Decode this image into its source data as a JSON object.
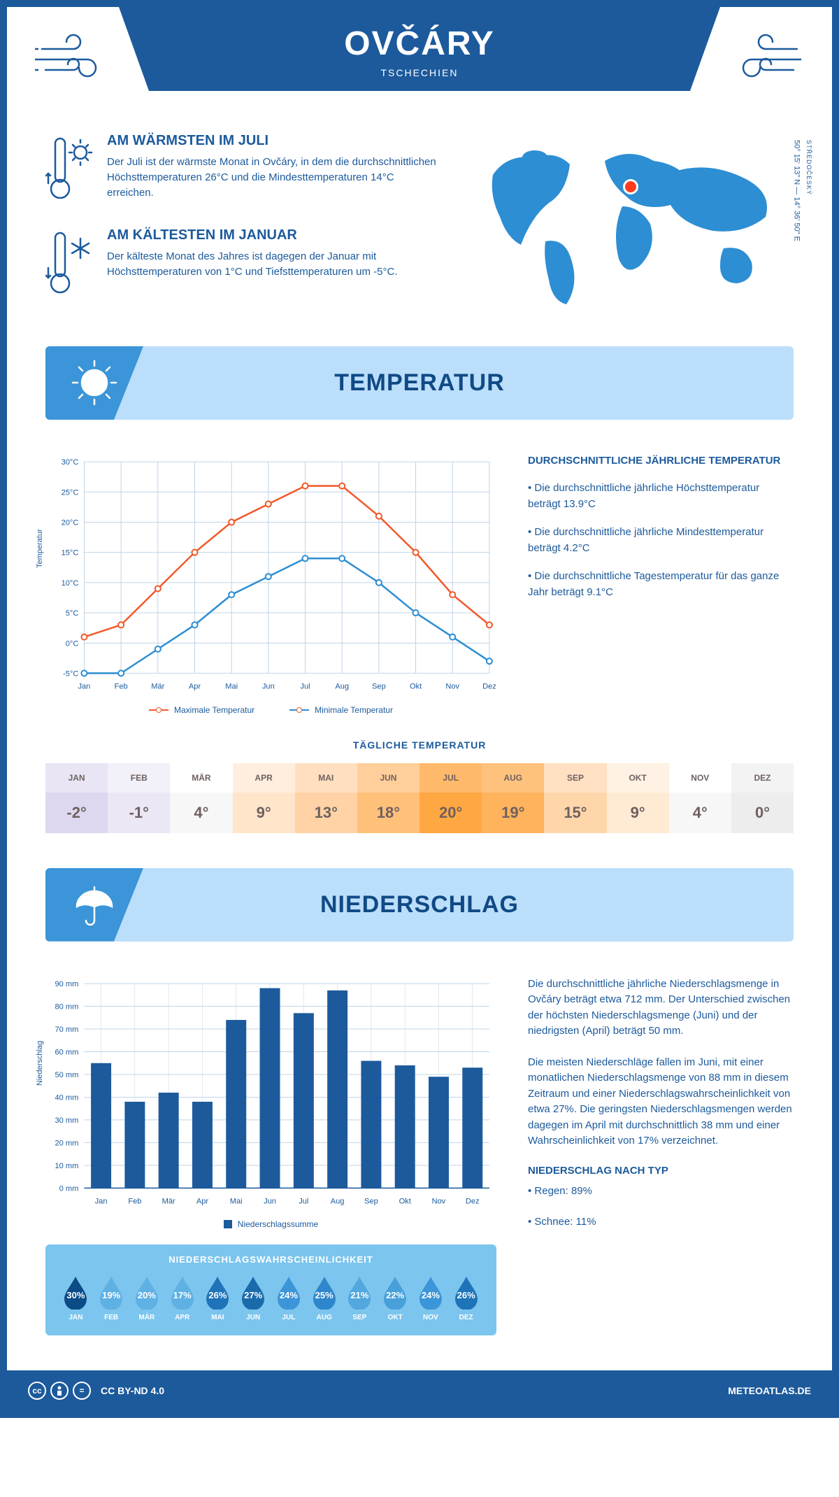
{
  "header": {
    "title": "OVČÁRY",
    "country": "TSCHECHIEN"
  },
  "coords": {
    "region": "STŘEDOČESKÝ",
    "text": "50° 15' 13\" N — 14° 36' 50\" E"
  },
  "facts": {
    "warm": {
      "title": "AM WÄRMSTEN IM JULI",
      "text": "Der Juli ist der wärmste Monat in Ovčáry, in dem die durchschnittlichen Höchsttemperaturen 26°C und die Mindesttemperaturen 14°C erreichen."
    },
    "cold": {
      "title": "AM KÄLTESTEN IM JANUAR",
      "text": "Der kälteste Monat des Jahres ist dagegen der Januar mit Höchsttemperaturen von 1°C und Tiefsttemperaturen um -5°C."
    }
  },
  "sections": {
    "temperature": "TEMPERATUR",
    "precipitation": "NIEDERSCHLAG"
  },
  "temp_chart": {
    "type": "line",
    "y_label": "Temperatur",
    "months": [
      "Jan",
      "Feb",
      "Mär",
      "Apr",
      "Mai",
      "Jun",
      "Jul",
      "Aug",
      "Sep",
      "Okt",
      "Nov",
      "Dez"
    ],
    "ylim": [
      -5,
      30
    ],
    "ytick_step": 5,
    "ytick_suffix": "°C",
    "max_series": [
      1,
      3,
      9,
      15,
      20,
      23,
      26,
      26,
      21,
      15,
      8,
      3
    ],
    "min_series": [
      -5,
      -5,
      -1,
      3,
      8,
      11,
      14,
      14,
      10,
      5,
      1,
      -3
    ],
    "max_color": "#f15a2b",
    "min_color": "#2d8ed3",
    "grid_color": "#bfd4e8",
    "legend": {
      "max": "Maximale Temperatur",
      "min": "Minimale Temperatur"
    }
  },
  "temp_info": {
    "heading": "DURCHSCHNITTLICHE JÄHRLICHE TEMPERATUR",
    "b1": "• Die durchschnittliche jährliche Höchsttemperatur beträgt 13.9°C",
    "b2": "• Die durchschnittliche jährliche Mindesttemperatur beträgt 4.2°C",
    "b3": "• Die durchschnittliche Tagestemperatur für das ganze Jahr beträgt 9.1°C"
  },
  "daily": {
    "title": "TÄGLICHE TEMPERATUR",
    "months": [
      "JAN",
      "FEB",
      "MÄR",
      "APR",
      "MAI",
      "JUN",
      "JUL",
      "AUG",
      "SEP",
      "OKT",
      "NOV",
      "DEZ"
    ],
    "values": [
      "-2°",
      "-1°",
      "4°",
      "9°",
      "13°",
      "18°",
      "20°",
      "19°",
      "15°",
      "9°",
      "4°",
      "0°"
    ],
    "head_colors": [
      "#e9e5f5",
      "#f2f0f9",
      "#ffffff",
      "#ffeedd",
      "#ffdfbf",
      "#ffcf9b",
      "#ffb96a",
      "#ffc27d",
      "#ffe0c2",
      "#fff2e4",
      "#ffffff",
      "#f3f3f3"
    ],
    "val_colors": [
      "#ddd7ef",
      "#ebe7f5",
      "#f7f7f7",
      "#ffe6cb",
      "#ffd3a5",
      "#ffc07a",
      "#ffa742",
      "#ffb35c",
      "#ffd5aa",
      "#ffead3",
      "#f7f7f7",
      "#ededed"
    ],
    "text_color": "#6f6060"
  },
  "precip_chart": {
    "type": "bar",
    "y_label": "Niederschlag",
    "months": [
      "Jan",
      "Feb",
      "Mär",
      "Apr",
      "Mai",
      "Jun",
      "Jul",
      "Aug",
      "Sep",
      "Okt",
      "Nov",
      "Dez"
    ],
    "values": [
      55,
      38,
      42,
      38,
      74,
      88,
      77,
      87,
      56,
      54,
      49,
      53
    ],
    "ylim": [
      0,
      90
    ],
    "ytick_step": 10,
    "ytick_suffix": " mm",
    "bar_color": "#1c5a9c",
    "grid_color": "#bfd4e8",
    "legend": "Niederschlagssumme"
  },
  "precip_text": {
    "p1": "Die durchschnittliche jährliche Niederschlagsmenge in Ovčáry beträgt etwa 712 mm. Der Unterschied zwischen der höchsten Niederschlagsmenge (Juni) und der niedrigsten (April) beträgt 50 mm.",
    "p2": "Die meisten Niederschläge fallen im Juni, mit einer monatlichen Niederschlagsmenge von 88 mm in diesem Zeitraum und einer Niederschlagswahrscheinlichkeit von etwa 27%. Die geringsten Niederschlagsmengen werden dagegen im April mit durchschnittlich 38 mm und einer Wahrscheinlichkeit von 17% verzeichnet.",
    "type_heading": "NIEDERSCHLAG NACH TYP",
    "rain": "• Regen: 89%",
    "snow": "• Schnee: 11%"
  },
  "prob": {
    "title": "NIEDERSCHLAGSWAHRSCHEINLICHKEIT",
    "months": [
      "JAN",
      "FEB",
      "MÄR",
      "APR",
      "MAI",
      "JUN",
      "JUL",
      "AUG",
      "SEP",
      "OKT",
      "NOV",
      "DEZ"
    ],
    "values": [
      "30%",
      "19%",
      "20%",
      "17%",
      "26%",
      "27%",
      "24%",
      "25%",
      "21%",
      "22%",
      "24%",
      "26%"
    ],
    "drop_colors": [
      "#0b4b86",
      "#5fb1e4",
      "#5fb1e4",
      "#5fb1e4",
      "#1f74b9",
      "#1b6bab",
      "#3b95d8",
      "#2e87cc",
      "#52a7de",
      "#48a0da",
      "#3b95d8",
      "#1f74b9"
    ]
  },
  "footer": {
    "license": "CC BY-ND 4.0",
    "site": "METEOATLAS.DE"
  },
  "colors": {
    "primary": "#1c5a9c",
    "light": "#bbdefb",
    "tab": "#3b95d8",
    "marker": "#ff3c1f"
  }
}
